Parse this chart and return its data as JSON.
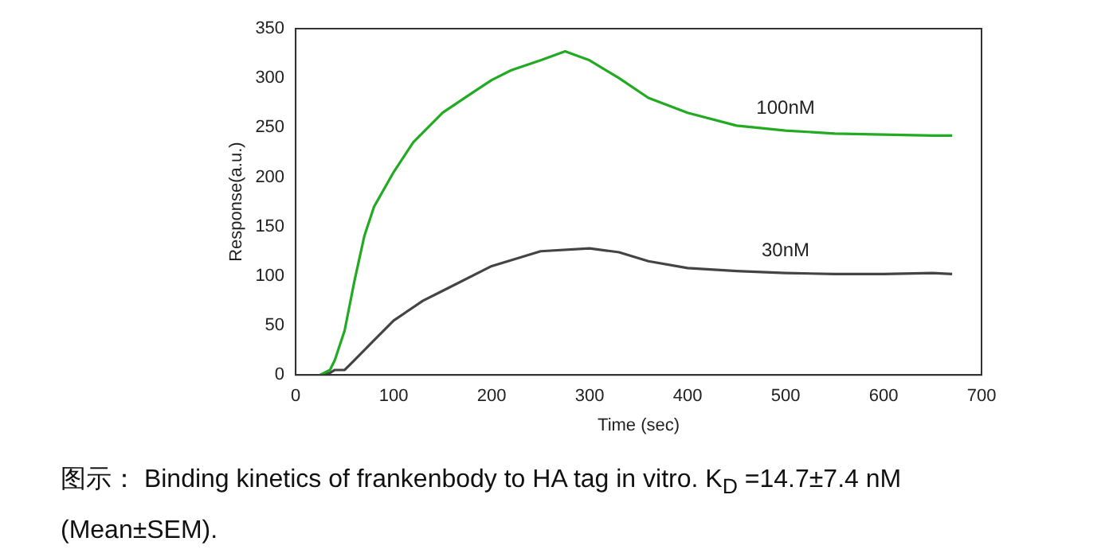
{
  "chart_data": {
    "type": "line",
    "xlabel": "Time (sec)",
    "ylabel": "Response(a.u.)",
    "xlim": [
      0,
      700
    ],
    "xticks": [
      0,
      100,
      200,
      300,
      400,
      500,
      600,
      700
    ],
    "ylim": [
      0,
      350
    ],
    "yticks": [
      0,
      50,
      100,
      150,
      200,
      250,
      300,
      350
    ],
    "grid": false,
    "legend": false,
    "marker": "none",
    "line_style": "solid",
    "series": [
      {
        "name": "100nM",
        "color": "#22aa22",
        "x": [
          25,
          35,
          40,
          50,
          60,
          70,
          80,
          100,
          120,
          150,
          180,
          200,
          220,
          250,
          275,
          300,
          330,
          360,
          400,
          450,
          500,
          550,
          600,
          650,
          670
        ],
        "values": [
          0,
          5,
          15,
          45,
          95,
          140,
          170,
          205,
          235,
          265,
          285,
          298,
          308,
          318,
          327,
          318,
          300,
          280,
          265,
          252,
          247,
          244,
          243,
          242,
          242
        ]
      },
      {
        "name": "30nM",
        "color": "#444444",
        "x": [
          25,
          35,
          40,
          50,
          60,
          80,
          100,
          130,
          150,
          200,
          250,
          300,
          330,
          360,
          400,
          450,
          500,
          550,
          600,
          650,
          670
        ],
        "values": [
          0,
          2,
          5,
          5,
          15,
          35,
          55,
          75,
          85,
          110,
          125,
          128,
          124,
          115,
          108,
          105,
          103,
          102,
          102,
          103,
          102
        ]
      }
    ],
    "annotations": [
      "图示：  Binding kinetics of frankenbody to HA tag in vitro. K$_{D}$ =14.7±7.4 nM (Mean±SEM)."
    ]
  }
}
